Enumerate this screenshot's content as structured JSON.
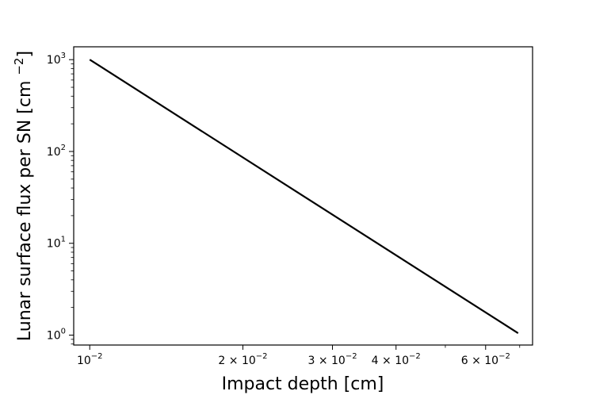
{
  "chart_data": {
    "type": "line",
    "title": "",
    "xlabel": "Impact depth [cm]",
    "ylabel": "Lunar surface flux per SN [cm⁻²]",
    "xscale": "log",
    "yscale": "log",
    "xlim": [
      0.0093,
      0.0742
    ],
    "ylim": [
      0.78,
      1380
    ],
    "grid": false,
    "legend": "none",
    "line_color": "#000000",
    "x_ticks": [
      {
        "value": 0.01,
        "mantissa": "",
        "exp": "−2"
      },
      {
        "value": 0.02,
        "mantissa": "2 × ",
        "exp": "−2"
      },
      {
        "value": 0.03,
        "mantissa": "3 × ",
        "exp": "−2"
      },
      {
        "value": 0.04,
        "mantissa": "4 × ",
        "exp": "−2"
      },
      {
        "value": 0.06,
        "mantissa": "6 × ",
        "exp": "−2"
      }
    ],
    "x_minor_ticks": [
      0.05,
      0.07
    ],
    "y_ticks": [
      {
        "value": 1,
        "exp": "0"
      },
      {
        "value": 10,
        "exp": "1"
      },
      {
        "value": 100,
        "exp": "2"
      },
      {
        "value": 1000,
        "exp": "3"
      }
    ],
    "series": [
      {
        "x": [
          0.01,
          0.0695
        ],
        "y": [
          1000,
          1.05
        ]
      }
    ]
  }
}
